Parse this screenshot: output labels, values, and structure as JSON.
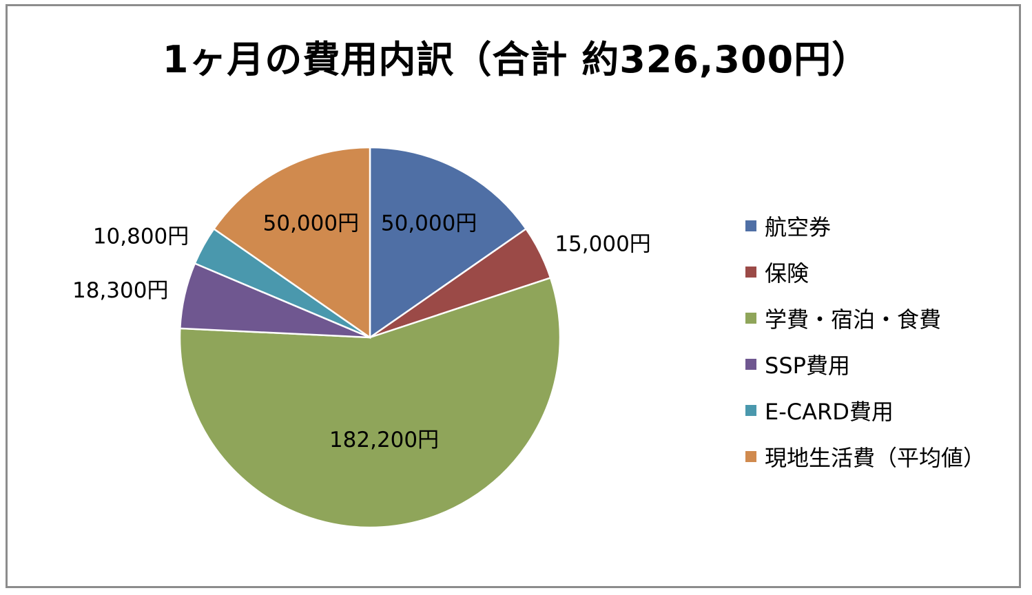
{
  "chart_data": {
    "type": "pie",
    "title": "1ヶ月の費用内訳（合計 約326,300円）",
    "start_angle_deg": 0,
    "direction": "clockwise",
    "slices": [
      {
        "name": "航空券",
        "value": 50000,
        "label": "50,000円",
        "color": "#4f6fa5",
        "label_pos": "inside"
      },
      {
        "name": "保険",
        "value": 15000,
        "label": "15,000円",
        "color": "#9b4a47",
        "label_pos": "outside"
      },
      {
        "name": "学費・宿泊・食費",
        "value": 182200,
        "label": "182,200円",
        "color": "#8fa55a",
        "label_pos": "inside"
      },
      {
        "name": "SSP費用",
        "value": 18300,
        "label": "18,300円",
        "color": "#6f5790",
        "label_pos": "outside"
      },
      {
        "name": "E-CARD費用",
        "value": 10800,
        "label": "10,800円",
        "color": "#4a98ad",
        "label_pos": "outside"
      },
      {
        "name": "現地生活費（平均値）",
        "value": 50000,
        "label": "50,000円",
        "color": "#d08a4e",
        "label_pos": "inside"
      }
    ],
    "legend": [
      "航空券",
      "保険",
      "学費・宿泊・食費",
      "SSP費用",
      "E-CARD費用",
      "現地生活費（平均値）"
    ],
    "legend_position": "right"
  }
}
